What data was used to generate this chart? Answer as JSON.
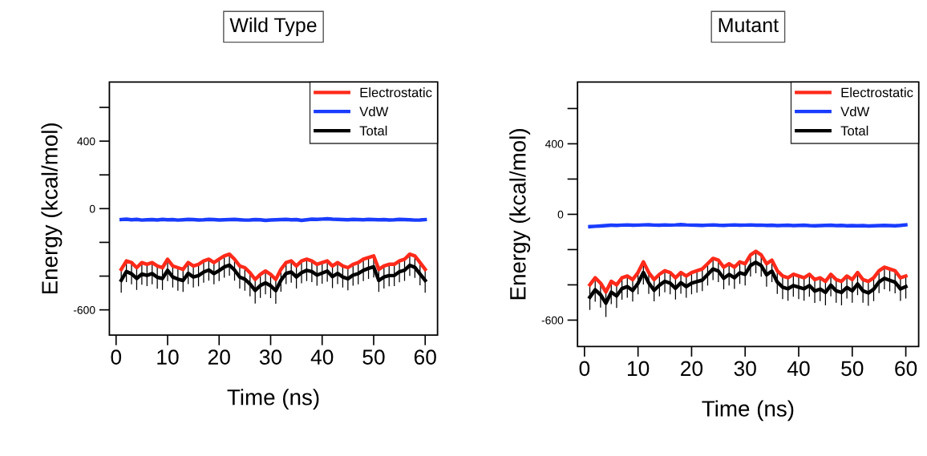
{
  "chart_data": [
    {
      "type": "line",
      "title": "Wild Type",
      "xlabel": "Time (ns)",
      "ylabel": "Energy (kcal/mol)",
      "xlim": [
        -1.3,
        62.4
      ],
      "ylim": [
        -750,
        750
      ],
      "xticks": [
        0,
        10,
        20,
        30,
        40,
        50,
        60
      ],
      "yticks": [
        {
          "value": -600,
          "label": "-600"
        },
        {
          "value": -400,
          "label": null
        },
        {
          "value": -200,
          "label": null
        },
        {
          "value": 0,
          "label": "0"
        },
        {
          "value": 200,
          "label": null
        },
        {
          "value": 400,
          "label": "400"
        },
        {
          "value": 600,
          "label": null
        }
      ],
      "legend": "top right",
      "grid": false,
      "marker": "none",
      "line_style": "solid",
      "x": [
        1,
        2,
        3,
        4,
        5,
        6,
        7,
        8,
        9,
        10,
        11,
        12,
        13,
        14,
        15,
        16,
        17,
        18,
        19,
        20,
        21,
        22,
        23,
        24,
        25,
        26,
        27,
        28,
        29,
        30,
        31,
        32,
        33,
        34,
        35,
        36,
        37,
        38,
        39,
        40,
        41,
        42,
        43,
        44,
        45,
        46,
        47,
        48,
        49,
        50,
        51,
        52,
        53,
        54,
        55,
        56,
        57,
        58,
        59,
        60
      ],
      "series": [
        {
          "name": "Electrostatic",
          "color": "#ff2a1a",
          "values": [
            -360,
            -310,
            -320,
            -350,
            -320,
            -330,
            -320,
            -340,
            -350,
            -300,
            -340,
            -350,
            -360,
            -320,
            -340,
            -330,
            -310,
            -300,
            -320,
            -300,
            -280,
            -270,
            -300,
            -340,
            -350,
            -380,
            -420,
            -390,
            -370,
            -390,
            -420,
            -360,
            -320,
            -310,
            -340,
            -310,
            -300,
            -310,
            -330,
            -320,
            -310,
            -340,
            -320,
            -340,
            -350,
            -330,
            -320,
            -300,
            -290,
            -280,
            -360,
            -340,
            -330,
            -330,
            -310,
            -300,
            -270,
            -280,
            -320,
            -360
          ]
        },
        {
          "name": "VdW",
          "color": "#1a3cff",
          "values": [
            -65,
            -63,
            -66,
            -64,
            -68,
            -66,
            -65,
            -67,
            -64,
            -66,
            -65,
            -68,
            -66,
            -64,
            -65,
            -67,
            -66,
            -64,
            -65,
            -67,
            -66,
            -65,
            -64,
            -66,
            -68,
            -67,
            -65,
            -66,
            -70,
            -67,
            -66,
            -65,
            -64,
            -66,
            -65,
            -70,
            -66,
            -63,
            -64,
            -62,
            -60,
            -63,
            -64,
            -65,
            -66,
            -64,
            -65,
            -66,
            -64,
            -65,
            -66,
            -65,
            -67,
            -66,
            -64,
            -65,
            -66,
            -68,
            -67,
            -65
          ]
        },
        {
          "name": "Total",
          "color": "#000000",
          "values": [
            -425,
            -373,
            -386,
            -414,
            -388,
            -396,
            -385,
            -407,
            -414,
            -366,
            -405,
            -418,
            -426,
            -384,
            -405,
            -397,
            -376,
            -364,
            -385,
            -367,
            -346,
            -335,
            -364,
            -406,
            -418,
            -447,
            -485,
            -456,
            -440,
            -457,
            -486,
            -425,
            -384,
            -376,
            -405,
            -380,
            -366,
            -373,
            -394,
            -382,
            -370,
            -403,
            -384,
            -405,
            -416,
            -394,
            -385,
            -366,
            -354,
            -345,
            -426,
            -405,
            -397,
            -396,
            -374,
            -365,
            -336,
            -348,
            -387,
            -425
          ],
          "errors": [
            70,
            60,
            60,
            65,
            60,
            60,
            60,
            65,
            65,
            60,
            60,
            65,
            65,
            60,
            60,
            60,
            60,
            60,
            60,
            60,
            60,
            60,
            60,
            65,
            65,
            70,
            75,
            70,
            65,
            70,
            75,
            65,
            60,
            60,
            65,
            60,
            60,
            60,
            60,
            60,
            60,
            65,
            60,
            60,
            65,
            60,
            60,
            60,
            60,
            60,
            65,
            65,
            60,
            60,
            60,
            60,
            60,
            60,
            65,
            70
          ]
        }
      ]
    },
    {
      "type": "line",
      "title": "Mutant",
      "xlabel": "Time (ns)",
      "ylabel": "Energy (kcal/mol)",
      "xlim": [
        -1.3,
        62.4
      ],
      "ylim": [
        -750,
        750
      ],
      "xticks": [
        0,
        10,
        20,
        30,
        40,
        50,
        60
      ],
      "yticks": [
        {
          "value": -600,
          "label": "-600"
        },
        {
          "value": -400,
          "label": null
        },
        {
          "value": -200,
          "label": null
        },
        {
          "value": 0,
          "label": "0"
        },
        {
          "value": 200,
          "label": null
        },
        {
          "value": 400,
          "label": "400"
        },
        {
          "value": 600,
          "label": null
        }
      ],
      "legend": "top right",
      "grid": false,
      "marker": "none",
      "line_style": "solid",
      "x": [
        1,
        2,
        3,
        4,
        5,
        6,
        7,
        8,
        9,
        10,
        11,
        12,
        13,
        14,
        15,
        16,
        17,
        18,
        19,
        20,
        21,
        22,
        23,
        24,
        25,
        26,
        27,
        28,
        29,
        30,
        31,
        32,
        33,
        34,
        35,
        36,
        37,
        38,
        39,
        40,
        41,
        42,
        43,
        44,
        45,
        46,
        47,
        48,
        49,
        50,
        51,
        52,
        53,
        54,
        55,
        56,
        57,
        58,
        59,
        60
      ],
      "series": [
        {
          "name": "Electrostatic",
          "color": "#ff2a1a",
          "values": [
            -400,
            -360,
            -390,
            -440,
            -380,
            -400,
            -360,
            -350,
            -370,
            -330,
            -270,
            -330,
            -370,
            -340,
            -320,
            -330,
            -360,
            -330,
            -350,
            -330,
            -320,
            -310,
            -280,
            -250,
            -260,
            -300,
            -280,
            -300,
            -270,
            -280,
            -230,
            -210,
            -230,
            -280,
            -260,
            -320,
            -350,
            -360,
            -340,
            -350,
            -360,
            -340,
            -370,
            -360,
            -380,
            -340,
            -370,
            -380,
            -350,
            -370,
            -330,
            -370,
            -380,
            -360,
            -320,
            -300,
            -310,
            -320,
            -360,
            -350
          ]
        },
        {
          "name": "VdW",
          "color": "#1a3cff",
          "values": [
            -70,
            -68,
            -66,
            -64,
            -62,
            -63,
            -61,
            -60,
            -62,
            -61,
            -60,
            -59,
            -61,
            -62,
            -60,
            -61,
            -60,
            -58,
            -60,
            -61,
            -62,
            -63,
            -61,
            -60,
            -62,
            -63,
            -61,
            -60,
            -62,
            -61,
            -60,
            -62,
            -61,
            -63,
            -62,
            -64,
            -63,
            -62,
            -64,
            -63,
            -62,
            -64,
            -65,
            -64,
            -63,
            -62,
            -64,
            -63,
            -65,
            -64,
            -65,
            -64,
            -66,
            -65,
            -64,
            -63,
            -64,
            -65,
            -63,
            -60
          ]
        },
        {
          "name": "Total",
          "color": "#000000",
          "values": [
            -470,
            -428,
            -456,
            -504,
            -442,
            -463,
            -421,
            -410,
            -432,
            -391,
            -330,
            -389,
            -431,
            -402,
            -380,
            -391,
            -420,
            -388,
            -410,
            -391,
            -382,
            -373,
            -341,
            -310,
            -322,
            -363,
            -341,
            -360,
            -332,
            -341,
            -290,
            -272,
            -291,
            -343,
            -322,
            -384,
            -413,
            -422,
            -404,
            -413,
            -422,
            -404,
            -435,
            -424,
            -443,
            -402,
            -434,
            -443,
            -415,
            -434,
            -395,
            -434,
            -446,
            -425,
            -384,
            -363,
            -374,
            -385,
            -423,
            -410
          ],
          "errors": [
            70,
            65,
            70,
            75,
            65,
            65,
            60,
            60,
            60,
            60,
            65,
            60,
            60,
            60,
            60,
            60,
            60,
            60,
            60,
            60,
            60,
            60,
            60,
            60,
            60,
            60,
            60,
            60,
            60,
            60,
            60,
            60,
            60,
            65,
            60,
            65,
            65,
            65,
            60,
            65,
            65,
            60,
            65,
            65,
            70,
            60,
            65,
            70,
            60,
            65,
            60,
            65,
            70,
            65,
            60,
            60,
            60,
            60,
            65,
            65
          ]
        }
      ]
    }
  ]
}
